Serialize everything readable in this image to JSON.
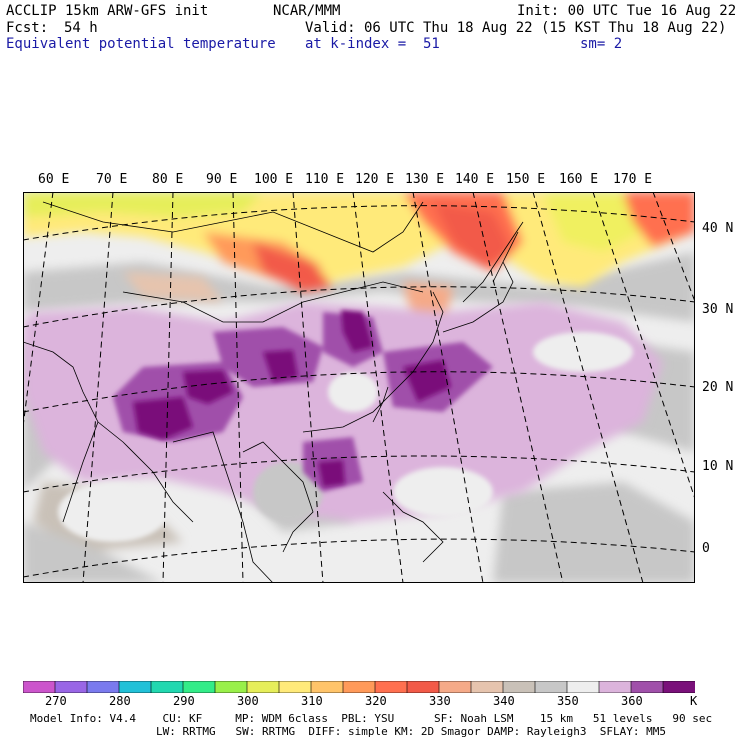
{
  "header": {
    "model": "ACCLIP 15km ARW-GFS init",
    "org": "NCAR/MMM",
    "init": "Init: 00 UTC Tue 16 Aug 22",
    "fcst_label": "Fcst:",
    "fcst_value": "54 h",
    "valid": "Valid: 06 UTC Thu 18 Aug 22 (15 KST Thu 18 Aug 22)",
    "field": "Equivalent potential temperature",
    "level": "at k-index =  51",
    "smooth": "sm= 2"
  },
  "map": {
    "lon_labels": [
      "60 E",
      "70 E",
      "80 E",
      "90 E",
      "100 E",
      "110 E",
      "120 E",
      "130 E",
      "140 E",
      "150 E",
      "160 E",
      "170 E"
    ],
    "lat_labels": [
      "40 N",
      "30 N",
      "20 N",
      "10 N",
      "0"
    ]
  },
  "colorbar": {
    "unit": "K",
    "colors": [
      "#cc55cc",
      "#9966e6",
      "#7a7aee",
      "#22c1d8",
      "#22d8b0",
      "#33ec88",
      "#99f04a",
      "#e6ee5a",
      "#ffea7a",
      "#ffc46a",
      "#ff9a5a",
      "#ff7050",
      "#f25a48",
      "#f5aa88",
      "#e6c4ae",
      "#c9c1b8",
      "#c7c7c7",
      "#eeeeee",
      "#dcb4dc",
      "#a050aa",
      "#7a107a"
    ],
    "tick_labels": [
      "270",
      "280",
      "290",
      "300",
      "310",
      "320",
      "330",
      "340",
      "350",
      "360"
    ]
  },
  "footer": {
    "line1": "Model Info: V4.4    CU: KF     MP: WDM 6class  PBL: YSU      SF: Noah LSM    15 km   51 levels   90 sec",
    "line2": "LW: RRTMG   SW: RRTMG  DIFF: simple KM: 2D Smagor DAMP: Rayleigh3  SFLAY: MM5"
  }
}
